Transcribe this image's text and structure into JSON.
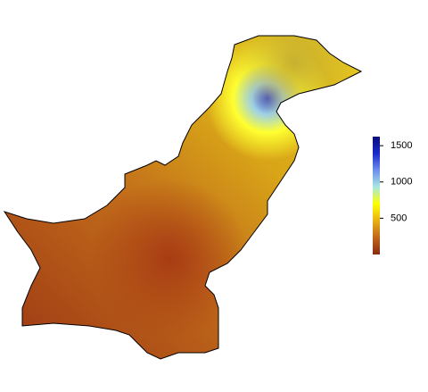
{
  "colorbar": {
    "lim": [
      0,
      1625
    ],
    "ticks": [
      500,
      1000,
      1500
    ],
    "colors": [
      "#8a2a12",
      "#c0661a",
      "#e8b010",
      "#ffff00",
      "#a8e8e0",
      "#6f8ef0",
      "#1a2acc",
      "#0a0a7a"
    ]
  }
}
